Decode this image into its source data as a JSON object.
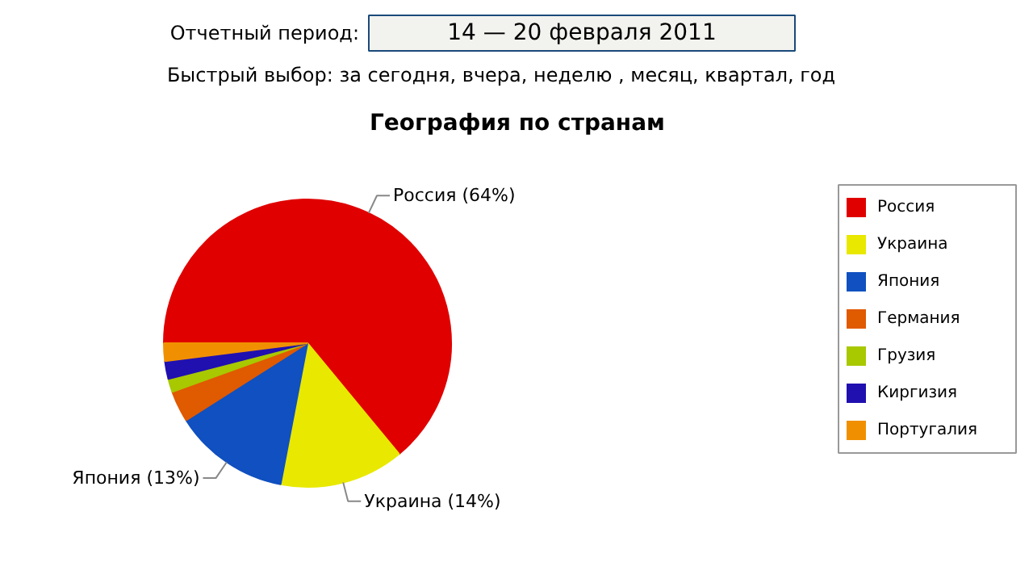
{
  "chart_data": {
    "type": "pie",
    "title": "География по странам",
    "annotations": [
      "Отчетный период:",
      "14 — 20 февраля 2011",
      "Быстрый выбор: за сегодня, вчера, неделю , месяц, квартал, год"
    ],
    "categories": [
      "Россия",
      "Украина",
      "Япония",
      "Германия",
      "Грузия",
      "Киргизия",
      "Португалия"
    ],
    "values": [
      64,
      14,
      13,
      3.5,
      1.5,
      2,
      2
    ],
    "value_labels": [
      "Россия (64%)",
      "Украина (14%)",
      "Япония (13%)",
      null,
      null,
      null,
      null
    ],
    "colors": [
      "#e00000",
      "#e8e800",
      "#1050c0",
      "#e05a00",
      "#a8c800",
      "#2010b0",
      "#f09000"
    ],
    "legend": "right"
  }
}
